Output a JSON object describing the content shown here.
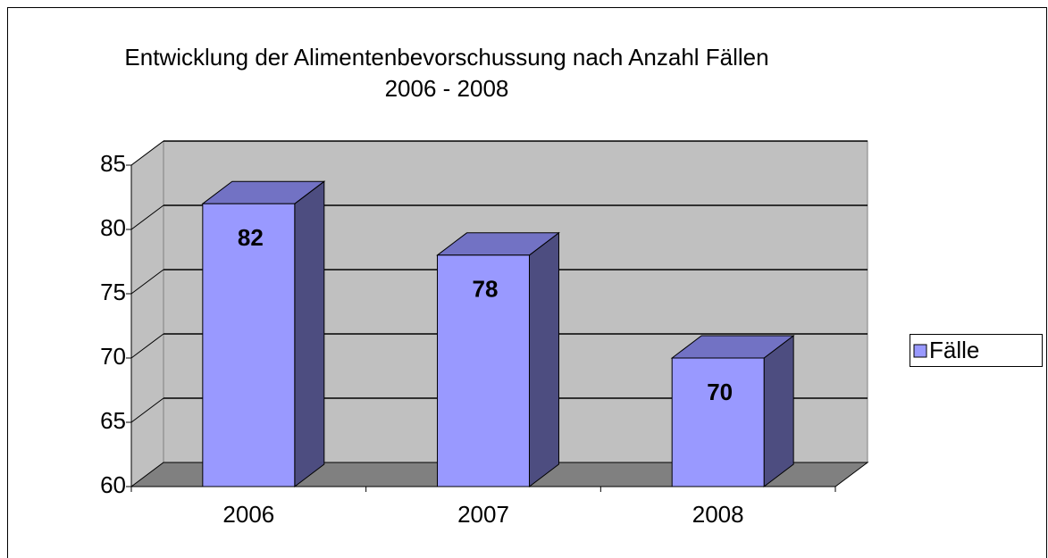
{
  "chart_data": {
    "type": "bar3d",
    "title": "Entwicklung der Alimentenbevorschussung nach Anzahl Fällen",
    "subtitle": "2006 - 2008",
    "categories": [
      "2006",
      "2007",
      "2008"
    ],
    "series": [
      {
        "name": "Fälle",
        "color": "#9999ff",
        "values": [
          82,
          78,
          70
        ]
      }
    ],
    "ylim": [
      60,
      85
    ],
    "yticks": [
      60,
      65,
      70,
      75,
      80,
      85
    ],
    "grid": true,
    "legend": "right"
  }
}
